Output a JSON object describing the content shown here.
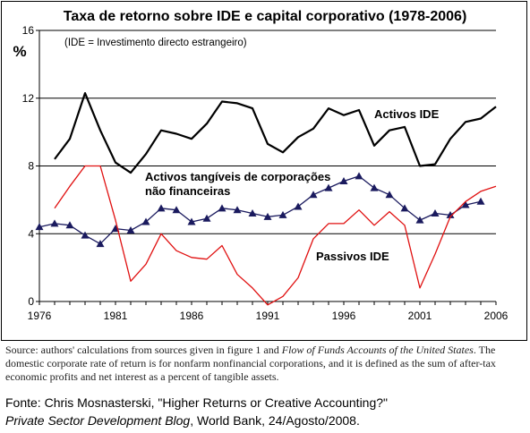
{
  "chart_data": {
    "type": "line",
    "title": "Taxa de retorno sobre IDE e capital corporativo (1978-2006)",
    "ylabel": "%",
    "annotation": "(IDE = Investimento directo estrangeiro)",
    "ylim": [
      0,
      16
    ],
    "yticks": [
      0,
      4,
      8,
      12,
      16
    ],
    "xlim": [
      1976,
      2006
    ],
    "xticks": [
      1976,
      1981,
      1986,
      1991,
      1996,
      2001,
      2006
    ],
    "grid": "horizontal",
    "series": [
      {
        "name": "Activos IDE",
        "color": "#000000",
        "marker": "none",
        "x": [
          1977,
          1978,
          1979,
          1980,
          1981,
          1982,
          1983,
          1984,
          1985,
          1986,
          1987,
          1988,
          1989,
          1990,
          1991,
          1992,
          1993,
          1994,
          1995,
          1996,
          1997,
          1998,
          1999,
          2000,
          2001,
          2002,
          2003,
          2004,
          2005,
          2006
        ],
        "y": [
          8.4,
          9.6,
          12.3,
          10.1,
          8.2,
          7.6,
          8.7,
          10.1,
          9.9,
          9.6,
          10.5,
          11.8,
          11.7,
          11.4,
          9.3,
          8.8,
          9.7,
          10.2,
          11.4,
          11.0,
          11.3,
          9.2,
          10.1,
          10.3,
          8.0,
          8.1,
          9.6,
          10.6,
          10.8,
          11.5
        ]
      },
      {
        "name": "Activos tangíveis de corporações não financeiras",
        "color": "#1a1a5e",
        "marker": "triangle",
        "x": [
          1976,
          1977,
          1978,
          1979,
          1980,
          1981,
          1982,
          1983,
          1984,
          1985,
          1986,
          1987,
          1988,
          1989,
          1990,
          1991,
          1992,
          1993,
          1994,
          1995,
          1996,
          1997,
          1998,
          1999,
          2000,
          2001,
          2002,
          2003,
          2004,
          2005
        ],
        "y": [
          4.4,
          4.6,
          4.5,
          3.9,
          3.4,
          4.3,
          4.2,
          4.7,
          5.5,
          5.4,
          4.7,
          4.9,
          5.5,
          5.4,
          5.2,
          5.0,
          5.1,
          5.6,
          6.3,
          6.7,
          7.1,
          7.4,
          6.7,
          6.3,
          5.5,
          4.8,
          5.2,
          5.1,
          5.7,
          5.9
        ]
      },
      {
        "name": "Passivos IDE",
        "color": "#e01010",
        "marker": "none",
        "x": [
          1977,
          1978,
          1979,
          1980,
          1981,
          1982,
          1983,
          1984,
          1985,
          1986,
          1987,
          1988,
          1989,
          1990,
          1991,
          1992,
          1993,
          1994,
          1995,
          1996,
          1997,
          1998,
          1999,
          2000,
          2001,
          2002,
          2003,
          2004,
          2005,
          2006
        ],
        "y": [
          5.5,
          6.8,
          8.0,
          8.0,
          4.8,
          1.2,
          2.2,
          4.0,
          3.0,
          2.6,
          2.5,
          3.3,
          1.6,
          0.8,
          -0.2,
          0.3,
          1.4,
          3.7,
          4.6,
          4.6,
          5.4,
          4.5,
          5.3,
          4.5,
          0.8,
          2.8,
          5.0,
          5.9,
          6.5,
          6.8
        ]
      }
    ]
  },
  "labels": {
    "activos_ide": "Activos IDE",
    "activos_tangiveis_line1": "Activos tangíveis de corporações",
    "activos_tangiveis_line2": "não financeiras",
    "passivos_ide": "Passivos IDE"
  },
  "source_note": {
    "part1": "Source: authors' calculations from sources given in figure 1 and ",
    "italic": "Flow of Funds Accounts of the United States",
    "part2": ". The domestic corporate rate of return is for nonfarm nonfinancial corporations, and it is defined as the sum of after-tax economic profits and net interest as a percent of tangible assets."
  },
  "fonte": {
    "line1": "Fonte: Chris Mosnasterski, \"Higher Returns or Creative Accounting?\"",
    "line2_italic": "Private Sector Development Blog",
    "line2_rest": ", World Bank, 24/Agosto/2008."
  }
}
